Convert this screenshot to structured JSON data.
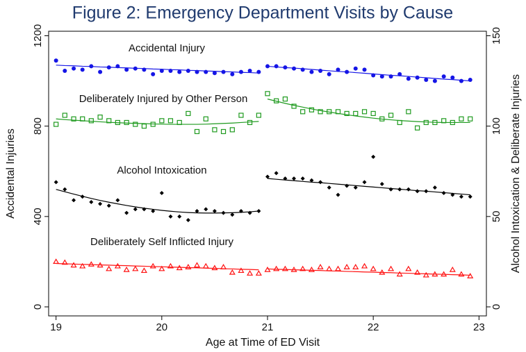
{
  "chart_data": {
    "type": "scatter",
    "title": "Figure 2: Emergency Department Visits by Cause",
    "x_label": "Age at Time of ED Visit",
    "y_label": "Accidental Injuries",
    "y2_label": "Alcohol Intoxication & Deliberate Injuries",
    "xlim": [
      18.93,
      23.07
    ],
    "xticks": [
      19,
      20,
      21,
      22,
      23
    ],
    "ylim": [
      -40,
      1220
    ],
    "yticks": [
      0,
      400,
      800,
      1200
    ],
    "y2lim": [
      -5,
      152.5
    ],
    "y2ticks": [
      0,
      50,
      100,
      150
    ],
    "xbreak": 21,
    "x": [
      19,
      19.083,
      19.167,
      19.25,
      19.333,
      19.417,
      19.5,
      19.583,
      19.667,
      19.75,
      19.833,
      19.917,
      20,
      20.083,
      20.167,
      20.25,
      20.333,
      20.417,
      20.5,
      20.583,
      20.667,
      20.75,
      20.833,
      20.917,
      21,
      21.083,
      21.167,
      21.25,
      21.333,
      21.417,
      21.5,
      21.583,
      21.667,
      21.75,
      21.833,
      21.917,
      22,
      22.083,
      22.167,
      22.25,
      22.333,
      22.417,
      22.5,
      22.583,
      22.667,
      22.75,
      22.833,
      22.917
    ],
    "series": [
      {
        "name": "Accidental Injury",
        "color": "#1515e6",
        "axis": "y",
        "marker": "dot",
        "values": [
          1090,
          1045,
          1055,
          1050,
          1065,
          1040,
          1060,
          1065,
          1050,
          1055,
          1050,
          1030,
          1045,
          1045,
          1040,
          1045,
          1040,
          1040,
          1035,
          1040,
          1030,
          1040,
          1045,
          1040,
          1065,
          1065,
          1060,
          1055,
          1050,
          1040,
          1045,
          1030,
          1050,
          1040,
          1055,
          1050,
          1025,
          1020,
          1020,
          1030,
          1010,
          1015,
          1005,
          1000,
          1020,
          1015,
          1000,
          1005
        ],
        "fit": [
          1070,
          1068,
          1067,
          1065,
          1064,
          1062,
          1061,
          1059,
          1058,
          1056,
          1055,
          1053,
          1052,
          1050,
          1049,
          1047,
          1046,
          1044,
          1043,
          1041,
          1040,
          1038,
          1037,
          1035,
          1065,
          1062,
          1059,
          1057,
          1054,
          1051,
          1048,
          1045,
          1042,
          1040,
          1037,
          1034,
          1031,
          1028,
          1025,
          1023,
          1020,
          1017,
          1014,
          1011,
          1008,
          1006,
          1003,
          1000
        ]
      },
      {
        "name": "Deliberately Injured by Other Person",
        "color": "#1e9a1e",
        "axis": "y2",
        "marker": "square",
        "values": [
          101,
          106,
          104,
          104,
          103,
          105,
          103,
          102,
          102,
          101,
          100,
          101,
          103,
          103,
          102,
          107,
          97,
          104,
          98,
          97,
          98,
          106,
          102,
          106,
          118,
          114,
          115,
          111,
          108,
          109,
          108,
          108,
          108,
          107,
          107,
          108,
          107,
          104,
          106,
          102,
          108,
          99,
          102,
          102,
          103,
          102,
          104,
          104
        ],
        "fit": [
          104,
          103.6,
          103.3,
          103,
          102.7,
          102.4,
          102.1,
          101.9,
          101.7,
          101.5,
          101.4,
          101.2,
          101.1,
          101,
          101,
          101,
          101,
          101.1,
          101.3,
          101.5,
          101.7,
          102,
          102.3,
          102.6,
          115,
          113.8,
          112.6,
          111.5,
          110.5,
          109.5,
          108.6,
          107.8,
          107,
          106.3,
          105.6,
          105,
          104.4,
          103.9,
          103.5,
          103.1,
          102.8,
          102.5,
          102.3,
          102.1,
          102,
          102,
          102,
          102
        ]
      },
      {
        "name": "Alcohol Intoxication",
        "color": "#000000",
        "axis": "y2",
        "marker": "diamond",
        "values": [
          69,
          65,
          59,
          61,
          58,
          57,
          56,
          59,
          52,
          54,
          54,
          53,
          63,
          50,
          50,
          48,
          53,
          54,
          53,
          52,
          51,
          53,
          52,
          53,
          72,
          74,
          71,
          71,
          71,
          70,
          69,
          66,
          62,
          67,
          66,
          69,
          83,
          68,
          65,
          65,
          65,
          64,
          64,
          66,
          63,
          62,
          61,
          61
        ],
        "fit": [
          65,
          63.7,
          62.4,
          61.2,
          60,
          58.9,
          57.9,
          57,
          56.1,
          55.3,
          54.6,
          54,
          53.4,
          52.9,
          52.5,
          52.2,
          52,
          51.9,
          51.9,
          52,
          52.1,
          52.3,
          52.6,
          53,
          71,
          70.6,
          70.2,
          69.8,
          69.4,
          69,
          68.7,
          68.3,
          67.9,
          67.5,
          67.1,
          66.7,
          66.3,
          65.9,
          65.5,
          65.1,
          64.7,
          64.3,
          64,
          63.6,
          63.2,
          62.8,
          62.4,
          62
        ]
      },
      {
        "name": "Deliberately Self Inflicted Injury",
        "color": "#ff1010",
        "axis": "y2",
        "marker": "triangle",
        "values": [
          25,
          24.5,
          23,
          22.5,
          23.5,
          23,
          21,
          22.5,
          20.5,
          21,
          20,
          22.5,
          21,
          22.5,
          21.5,
          22,
          23,
          22.5,
          21.5,
          22,
          19,
          20,
          18.5,
          18.5,
          20.5,
          21,
          21,
          20.5,
          21,
          20.5,
          22,
          21,
          21,
          22,
          22,
          22.5,
          21,
          19,
          21,
          18,
          21,
          19,
          17.5,
          18,
          18,
          20.5,
          18,
          17
        ],
        "fit": [
          24,
          23.8,
          23.7,
          23.5,
          23.4,
          23.2,
          23.1,
          22.9,
          22.8,
          22.6,
          22.5,
          22.3,
          22.2,
          22,
          21.9,
          21.7,
          21.6,
          21.4,
          21.3,
          21.1,
          21,
          20.8,
          20.7,
          20.5,
          21,
          20.8,
          20.7,
          20.5,
          20.4,
          20.2,
          20.1,
          19.9,
          19.8,
          19.6,
          19.5,
          19.3,
          19.2,
          19,
          18.9,
          18.7,
          18.6,
          18.4,
          18.3,
          18.1,
          18,
          17.8,
          17.7,
          17.5
        ]
      }
    ]
  }
}
